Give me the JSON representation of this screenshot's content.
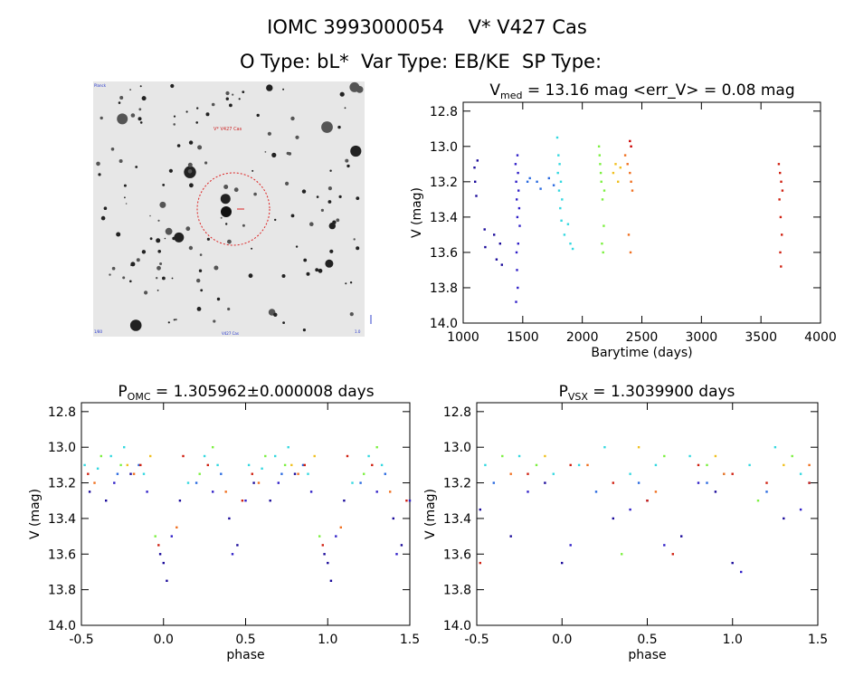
{
  "header": {
    "title": "IOMC 3993000054    V* V427 Cas",
    "subtitle": "O Type: bL*  Var Type: EB/KE  SP Type:"
  },
  "finder": {
    "target_label": "V* V427 Cas",
    "corner_labels": [
      "Planck",
      "1/80",
      "V427 Cas",
      "1.0"
    ]
  },
  "colors": {
    "palette": [
      "#1a0a9a",
      "#3020c8",
      "#2a6ae0",
      "#34d8e0",
      "#7cf040",
      "#f0c020",
      "#f07020",
      "#d02010",
      "#cc0000"
    ]
  },
  "chart_data": [
    {
      "type": "scatter",
      "title": "V_med = 13.16 mag <err_V> = 0.08 mag",
      "title_parts": {
        "pre": "V",
        "sub": "med",
        "post": " = 13.16 mag <err_V> = 0.08 mag"
      },
      "xlabel": "Barytime (days)",
      "ylabel": "V (mag)",
      "xlim": [
        1000,
        4000
      ],
      "ylim": [
        14.0,
        12.75
      ],
      "xticks": [
        1000,
        1500,
        2000,
        2500,
        3000,
        3500,
        4000
      ],
      "yticks": [
        12.8,
        13.0,
        13.2,
        13.4,
        13.6,
        13.8,
        14.0
      ],
      "grid": false,
      "series": [
        {
          "color": "#1a0a9a",
          "x": [
            1095,
            1100,
            1110,
            1120,
            1180,
            1185,
            1260,
            1280,
            1310,
            1325
          ],
          "y": [
            13.12,
            13.2,
            13.28,
            13.08,
            13.47,
            13.57,
            13.5,
            13.64,
            13.55,
            13.67
          ]
        },
        {
          "color": "#3020c8",
          "x": [
            1440,
            1445,
            1450,
            1455,
            1460,
            1465,
            1470,
            1475,
            1448,
            1452,
            1458,
            1462,
            1444,
            1456
          ],
          "y": [
            13.1,
            13.2,
            13.3,
            13.4,
            13.15,
            13.25,
            13.35,
            13.45,
            13.6,
            13.7,
            13.8,
            13.55,
            13.88,
            13.05
          ]
        },
        {
          "color": "#2a6ae0",
          "x": [
            1540,
            1560,
            1620,
            1650,
            1720,
            1760
          ],
          "y": [
            13.2,
            13.18,
            13.2,
            13.24,
            13.18,
            13.22
          ]
        },
        {
          "color": "#34d8e0",
          "x": [
            1790,
            1800,
            1810,
            1820,
            1830,
            1795,
            1805,
            1815,
            1825,
            1850,
            1880,
            1900,
            1920
          ],
          "y": [
            12.95,
            13.05,
            13.1,
            13.2,
            13.3,
            13.15,
            13.25,
            13.35,
            13.42,
            13.5,
            13.44,
            13.55,
            13.58
          ]
        },
        {
          "color": "#7cf040",
          "x": [
            2140,
            2150,
            2160,
            2170,
            2180,
            2145,
            2155,
            2165,
            2175,
            2185
          ],
          "y": [
            13.0,
            13.1,
            13.2,
            13.3,
            13.45,
            13.05,
            13.15,
            13.55,
            13.6,
            13.25
          ]
        },
        {
          "color": "#f0c020",
          "x": [
            2260,
            2280,
            2300,
            2320
          ],
          "y": [
            13.15,
            13.1,
            13.2,
            13.12
          ]
        },
        {
          "color": "#f07020",
          "x": [
            2360,
            2380,
            2400,
            2410,
            2420,
            2390,
            2405
          ],
          "y": [
            13.05,
            13.1,
            13.15,
            13.2,
            13.25,
            13.5,
            13.6
          ]
        },
        {
          "color": "#cc0000",
          "x": [
            2400,
            2410
          ],
          "y": [
            12.97,
            13.0
          ]
        },
        {
          "color": "#d02010",
          "x": [
            3650,
            3660,
            3670,
            3680,
            3655,
            3665,
            3675,
            3662,
            3668
          ],
          "y": [
            13.1,
            13.15,
            13.2,
            13.25,
            13.3,
            13.4,
            13.5,
            13.6,
            13.68
          ]
        }
      ]
    },
    {
      "type": "scatter",
      "title": "P_OMC = 1.305962±0.000008 days",
      "title_parts": {
        "pre": "P",
        "sub": "OMC",
        "post": " = 1.305962±0.000008 days"
      },
      "xlabel": "phase",
      "ylabel": "V (mag)",
      "xlim": [
        -0.5,
        1.5
      ],
      "ylim": [
        14.0,
        12.75
      ],
      "xticks": [
        -0.5,
        0.0,
        0.5,
        1.0,
        1.5
      ],
      "yticks": [
        12.8,
        13.0,
        13.2,
        13.4,
        13.6,
        13.8,
        14.0
      ],
      "grid": false,
      "series": [
        {
          "color": "#1a0a9a",
          "x": [
            -0.45,
            -0.35,
            -0.2,
            0.0,
            0.02,
            -0.02,
            0.1,
            0.4,
            0.45,
            0.55,
            0.65,
            0.8,
            1.0,
            1.02,
            0.98,
            1.1,
            1.4,
            1.45
          ],
          "y": [
            13.25,
            13.3,
            13.15,
            13.65,
            13.75,
            13.6,
            13.3,
            13.4,
            13.55,
            13.2,
            13.3,
            13.15,
            13.65,
            13.75,
            13.6,
            13.3,
            13.4,
            13.55
          ]
        },
        {
          "color": "#3020c8",
          "x": [
            -0.3,
            -0.1,
            0.05,
            0.3,
            0.42,
            0.5,
            0.7,
            0.9,
            1.05,
            1.3,
            1.42,
            1.5
          ],
          "y": [
            13.2,
            13.25,
            13.5,
            13.25,
            13.6,
            13.3,
            13.2,
            13.25,
            13.5,
            13.25,
            13.6,
            13.3
          ]
        },
        {
          "color": "#2a6ae0",
          "x": [
            -0.28,
            -0.15,
            0.2,
            0.35,
            0.72,
            0.85,
            1.2,
            1.35
          ],
          "y": [
            13.15,
            13.1,
            13.2,
            13.15,
            13.15,
            13.1,
            13.2,
            13.15
          ]
        },
        {
          "color": "#34d8e0",
          "x": [
            -0.48,
            -0.4,
            -0.32,
            -0.24,
            -0.12,
            0.15,
            0.25,
            0.33,
            0.52,
            0.6,
            0.68,
            0.76,
            0.88,
            1.15,
            1.25,
            1.33
          ],
          "y": [
            13.1,
            13.12,
            13.05,
            13.0,
            13.15,
            13.2,
            13.05,
            13.1,
            13.1,
            13.12,
            13.05,
            13.0,
            13.15,
            13.2,
            13.05,
            13.1
          ]
        },
        {
          "color": "#7cf040",
          "x": [
            -0.38,
            -0.26,
            -0.05,
            0.22,
            0.3,
            0.62,
            0.74,
            0.95,
            1.22,
            1.3
          ],
          "y": [
            13.05,
            13.1,
            13.5,
            13.15,
            13.0,
            13.05,
            13.1,
            13.5,
            13.15,
            13.0
          ]
        },
        {
          "color": "#f0c020",
          "x": [
            -0.22,
            -0.08,
            0.78,
            0.92
          ],
          "y": [
            13.1,
            13.05,
            13.1,
            13.05
          ]
        },
        {
          "color": "#f07020",
          "x": [
            -0.42,
            -0.18,
            0.08,
            0.38,
            0.58,
            0.82,
            1.08,
            1.38
          ],
          "y": [
            13.2,
            13.15,
            13.45,
            13.25,
            13.2,
            13.15,
            13.45,
            13.25
          ]
        },
        {
          "color": "#d02010",
          "x": [
            -0.46,
            -0.14,
            -0.03,
            0.12,
            0.27,
            0.48,
            0.54,
            0.86,
            0.97,
            1.12,
            1.27,
            1.48
          ],
          "y": [
            13.15,
            13.1,
            13.55,
            13.05,
            13.1,
            13.3,
            13.15,
            13.1,
            13.55,
            13.05,
            13.1,
            13.3
          ]
        }
      ]
    },
    {
      "type": "scatter",
      "title": "P_VSX = 1.3039900 days",
      "title_parts": {
        "pre": "P",
        "sub": "VSX",
        "post": " = 1.3039900 days"
      },
      "xlabel": "phase",
      "ylabel": "V (mag)",
      "xlim": [
        -0.5,
        1.5
      ],
      "ylim": [
        14.0,
        12.75
      ],
      "xticks": [
        -0.5,
        0.0,
        0.5,
        1.0,
        1.5
      ],
      "yticks": [
        12.8,
        13.0,
        13.2,
        13.4,
        13.6,
        13.8,
        14.0
      ],
      "grid": false,
      "series": [
        {
          "color": "#1a0a9a",
          "x": [
            -0.48,
            -0.3,
            -0.1,
            0.0,
            0.3,
            0.5,
            0.7,
            0.9,
            1.0,
            1.3
          ],
          "y": [
            13.35,
            13.5,
            13.2,
            13.65,
            13.4,
            13.3,
            13.5,
            13.25,
            13.65,
            13.4
          ]
        },
        {
          "color": "#3020c8",
          "x": [
            -0.2,
            0.05,
            0.4,
            0.6,
            0.8,
            1.05,
            1.4
          ],
          "y": [
            13.25,
            13.55,
            13.35,
            13.55,
            13.2,
            13.7,
            13.35
          ]
        },
        {
          "color": "#2a6ae0",
          "x": [
            -0.4,
            0.2,
            0.45,
            0.85,
            1.2,
            1.45
          ],
          "y": [
            13.2,
            13.25,
            13.2,
            13.2,
            13.25,
            13.2
          ]
        },
        {
          "color": "#34d8e0",
          "x": [
            -0.45,
            -0.25,
            -0.05,
            0.1,
            0.25,
            0.4,
            0.55,
            0.75,
            0.95,
            1.1,
            1.25,
            1.4
          ],
          "y": [
            13.1,
            13.05,
            13.15,
            13.1,
            13.0,
            13.15,
            13.1,
            13.05,
            13.15,
            13.1,
            13.0,
            13.15
          ]
        },
        {
          "color": "#7cf040",
          "x": [
            -0.35,
            -0.15,
            0.35,
            0.6,
            0.85,
            1.15,
            1.35
          ],
          "y": [
            13.05,
            13.1,
            13.6,
            13.05,
            13.1,
            13.3,
            13.05
          ]
        },
        {
          "color": "#f0c020",
          "x": [
            -0.1,
            0.45,
            0.9,
            1.3
          ],
          "y": [
            13.05,
            13.0,
            13.05,
            13.1
          ]
        },
        {
          "color": "#f07020",
          "x": [
            -0.3,
            0.15,
            0.55,
            0.95,
            1.45
          ],
          "y": [
            13.15,
            13.1,
            13.25,
            13.15,
            13.1
          ]
        },
        {
          "color": "#d02010",
          "x": [
            -0.48,
            -0.2,
            0.05,
            0.3,
            0.5,
            0.65,
            0.8,
            1.0,
            1.2,
            1.45
          ],
          "y": [
            13.65,
            13.15,
            13.1,
            13.2,
            13.3,
            13.6,
            13.1,
            13.15,
            13.2,
            13.2
          ]
        }
      ]
    }
  ]
}
